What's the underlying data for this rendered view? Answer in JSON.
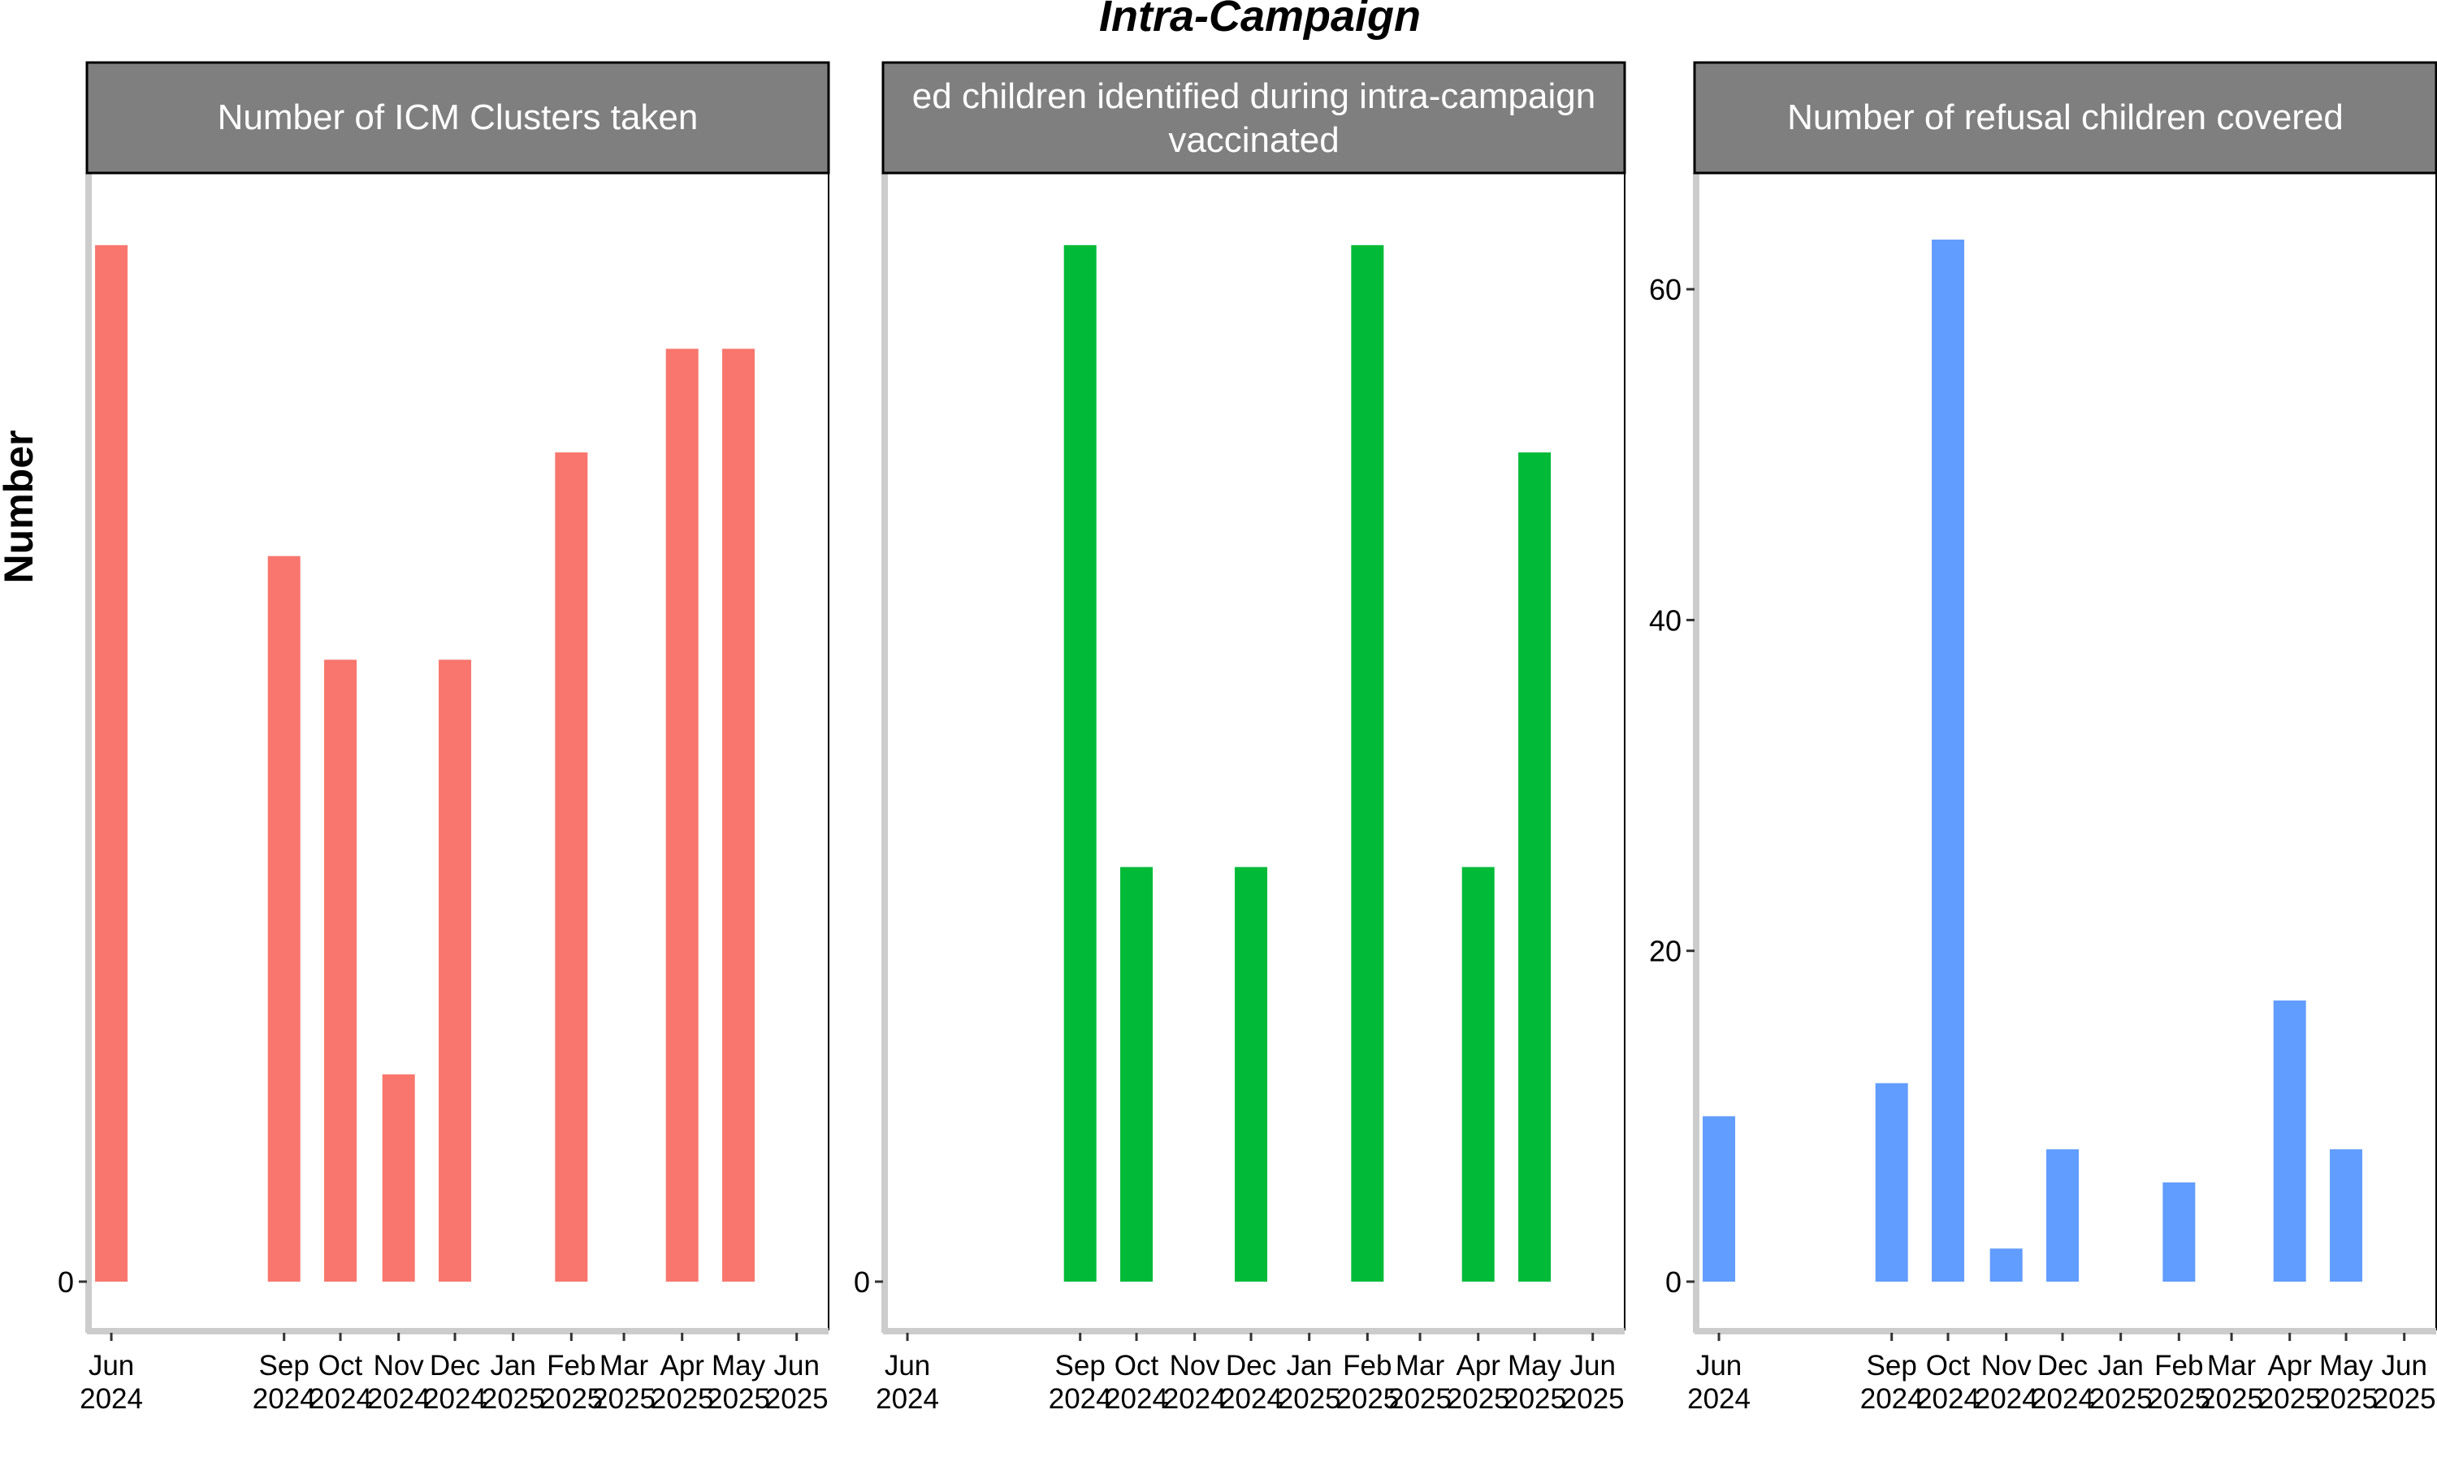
{
  "title": "Intra-Campaign",
  "ylabel": "Number",
  "x_ticks": [
    {
      "month": "Jun",
      "year": "2024"
    },
    {
      "month": "Sep",
      "year": "2024"
    },
    {
      "month": "Oct",
      "year": "2024"
    },
    {
      "month": "Nov",
      "year": "2024"
    },
    {
      "month": "Dec",
      "year": "2024"
    },
    {
      "month": "Jan",
      "year": "2025"
    },
    {
      "month": "Feb",
      "year": "2025"
    },
    {
      "month": "Mar",
      "year": "2025"
    },
    {
      "month": "Apr",
      "year": "2025"
    },
    {
      "month": "May",
      "year": "2025"
    },
    {
      "month": "Jun",
      "year": "2025"
    }
  ],
  "chart_data": [
    {
      "type": "bar",
      "title_lines": [
        "Number of ICM Clusters taken"
      ],
      "color": "#F8766D",
      "y_tick_labels": [
        "0"
      ],
      "ylim": [
        0,
        1.05
      ],
      "categories": [
        "2024-06-01",
        "2024-09-01",
        "2024-10-01",
        "2024-11-01",
        "2024-12-01",
        "2025-02-01",
        "2025-04-01",
        "2025-05-01"
      ],
      "values": [
        1.0,
        0.7,
        0.6,
        0.2,
        0.6,
        0.8,
        0.9,
        0.9
      ]
    },
    {
      "type": "bar",
      "title_lines": [
        "ed children identified during intra-campaign",
        "vaccinated"
      ],
      "color": "#00BA38",
      "y_tick_labels": [
        "0"
      ],
      "ylim": [
        0,
        1.05
      ],
      "categories": [
        "2024-09-01",
        "2024-10-01",
        "2024-12-01",
        "2025-02-01",
        "2025-04-01",
        "2025-05-01"
      ],
      "values": [
        1.0,
        0.4,
        0.4,
        1.0,
        0.4,
        0.8
      ]
    },
    {
      "type": "bar",
      "title_lines": [
        "Number of refusal children covered"
      ],
      "color": "#619CFF",
      "y_tick_labels": [
        "0",
        "20",
        "40",
        "60"
      ],
      "y_tick_values": [
        0,
        20,
        40,
        60
      ],
      "ylim": [
        0,
        65.8
      ],
      "categories": [
        "2024-06-01",
        "2024-09-01",
        "2024-10-01",
        "2024-11-01",
        "2024-12-01",
        "2025-02-01",
        "2025-04-01",
        "2025-05-01"
      ],
      "values": [
        10,
        12,
        63,
        2,
        8,
        6,
        17,
        8
      ]
    }
  ]
}
